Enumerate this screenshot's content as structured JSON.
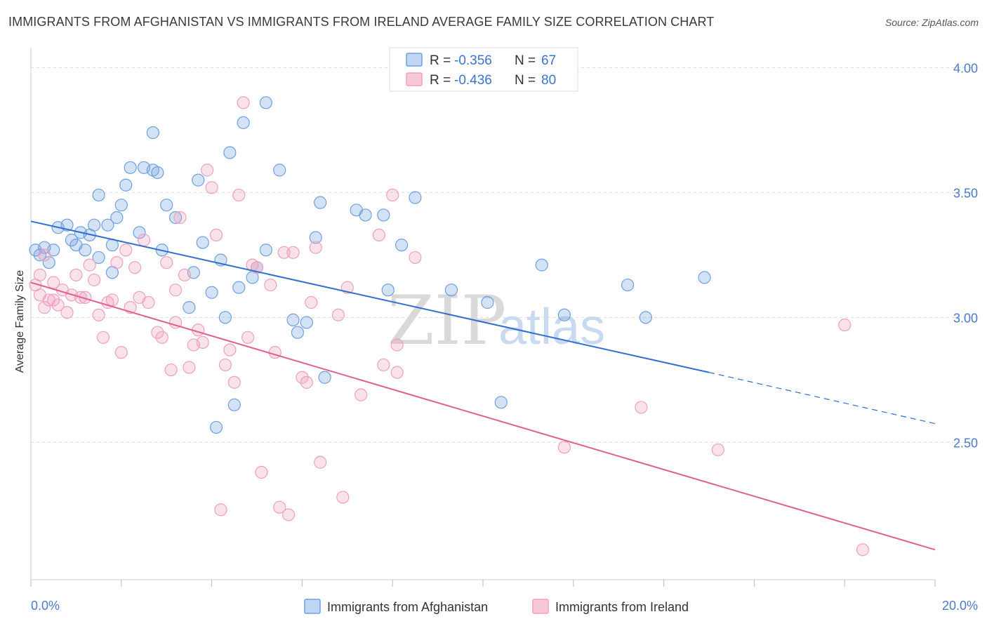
{
  "title": "IMMIGRANTS FROM AFGHANISTAN VS IMMIGRANTS FROM IRELAND AVERAGE FAMILY SIZE CORRELATION CHART",
  "source": "Source: ZipAtlas.com",
  "watermark": {
    "zip": "ZIP",
    "atlas": "atlas"
  },
  "chart_data": {
    "type": "scatter",
    "ylabel": "Average Family Size",
    "xlim": [
      0,
      20
    ],
    "ylim": [
      1.95,
      4.08
    ],
    "x_tick_labels": [
      "0.0%",
      "20.0%"
    ],
    "y_ticks": [
      2.5,
      3.0,
      3.5,
      4.0
    ],
    "y_tick_labels": [
      "2.50",
      "3.00",
      "3.50",
      "4.00"
    ],
    "legend": {
      "r_label": "R =",
      "n_label": "N =",
      "entries": [
        {
          "r": "-0.356",
          "n": "67"
        },
        {
          "r": "-0.436",
          "n": "80"
        }
      ]
    },
    "series": [
      {
        "name": "Immigrants from Afghanistan",
        "color": "#6fa0e0",
        "line_color": "#2f6fd0",
        "trend": {
          "x0": 0,
          "y0": 3.385,
          "x1": 15,
          "y1": 2.78,
          "dash_x1": 20,
          "dash_y1": 2.575
        },
        "points": [
          [
            0.1,
            3.27
          ],
          [
            0.2,
            3.25
          ],
          [
            0.3,
            3.28
          ],
          [
            0.4,
            3.22
          ],
          [
            0.5,
            3.27
          ],
          [
            0.6,
            3.36
          ],
          [
            0.8,
            3.37
          ],
          [
            0.9,
            3.31
          ],
          [
            1.0,
            3.29
          ],
          [
            1.1,
            3.34
          ],
          [
            1.2,
            3.27
          ],
          [
            1.3,
            3.33
          ],
          [
            1.4,
            3.37
          ],
          [
            1.5,
            3.49
          ],
          [
            1.5,
            3.24
          ],
          [
            1.7,
            3.37
          ],
          [
            1.8,
            3.29
          ],
          [
            1.8,
            3.18
          ],
          [
            1.9,
            3.4
          ],
          [
            2.0,
            3.45
          ],
          [
            2.1,
            3.53
          ],
          [
            2.2,
            3.6
          ],
          [
            2.4,
            3.34
          ],
          [
            2.5,
            3.6
          ],
          [
            2.7,
            3.59
          ],
          [
            2.8,
            3.58
          ],
          [
            2.7,
            3.74
          ],
          [
            2.9,
            3.27
          ],
          [
            3.0,
            3.45
          ],
          [
            3.2,
            3.4
          ],
          [
            3.5,
            3.04
          ],
          [
            3.6,
            3.18
          ],
          [
            3.7,
            3.55
          ],
          [
            3.8,
            3.3
          ],
          [
            4.0,
            3.1
          ],
          [
            4.1,
            2.56
          ],
          [
            4.2,
            3.23
          ],
          [
            4.3,
            3.0
          ],
          [
            4.4,
            3.66
          ],
          [
            4.6,
            3.12
          ],
          [
            4.5,
            2.65
          ],
          [
            4.7,
            3.78
          ],
          [
            4.9,
            3.16
          ],
          [
            5.0,
            3.2
          ],
          [
            5.2,
            3.86
          ],
          [
            5.2,
            3.27
          ],
          [
            5.5,
            3.59
          ],
          [
            5.8,
            2.99
          ],
          [
            5.9,
            2.94
          ],
          [
            6.1,
            2.98
          ],
          [
            6.3,
            3.32
          ],
          [
            6.4,
            3.46
          ],
          [
            6.5,
            2.76
          ],
          [
            7.2,
            3.43
          ],
          [
            7.4,
            3.41
          ],
          [
            7.8,
            3.41
          ],
          [
            7.9,
            3.11
          ],
          [
            8.2,
            3.29
          ],
          [
            8.5,
            3.48
          ],
          [
            9.3,
            3.11
          ],
          [
            10.1,
            3.06
          ],
          [
            11.3,
            3.21
          ],
          [
            13.2,
            3.13
          ],
          [
            14.9,
            3.16
          ],
          [
            11.8,
            3.01
          ],
          [
            10.4,
            2.66
          ],
          [
            13.6,
            3.0
          ]
        ]
      },
      {
        "name": "Immigrants from Ireland",
        "color": "#f0a0bc",
        "line_color": "#e0608f",
        "trend": {
          "x0": 0,
          "y0": 3.14,
          "x1": 20,
          "y1": 2.07
        },
        "points": [
          [
            0.1,
            3.13
          ],
          [
            0.2,
            3.17
          ],
          [
            0.2,
            3.09
          ],
          [
            0.3,
            3.25
          ],
          [
            0.3,
            3.04
          ],
          [
            0.4,
            3.07
          ],
          [
            0.5,
            3.07
          ],
          [
            0.5,
            3.14
          ],
          [
            0.6,
            3.05
          ],
          [
            0.7,
            3.11
          ],
          [
            0.8,
            3.02
          ],
          [
            0.9,
            3.09
          ],
          [
            1.0,
            3.17
          ],
          [
            1.1,
            3.08
          ],
          [
            1.2,
            3.08
          ],
          [
            1.3,
            3.21
          ],
          [
            1.4,
            3.15
          ],
          [
            1.5,
            3.01
          ],
          [
            1.6,
            2.92
          ],
          [
            1.7,
            3.06
          ],
          [
            1.8,
            3.07
          ],
          [
            1.9,
            3.22
          ],
          [
            2.0,
            2.86
          ],
          [
            2.1,
            3.27
          ],
          [
            2.3,
            3.2
          ],
          [
            2.4,
            3.08
          ],
          [
            2.5,
            3.31
          ],
          [
            2.6,
            3.06
          ],
          [
            2.8,
            2.94
          ],
          [
            2.9,
            2.92
          ],
          [
            3.0,
            3.22
          ],
          [
            3.1,
            2.79
          ],
          [
            3.2,
            2.98
          ],
          [
            3.3,
            3.4
          ],
          [
            3.4,
            3.17
          ],
          [
            3.5,
            2.8
          ],
          [
            3.6,
            2.89
          ],
          [
            3.7,
            2.95
          ],
          [
            3.8,
            2.9
          ],
          [
            3.9,
            3.59
          ],
          [
            4.0,
            3.52
          ],
          [
            4.1,
            3.33
          ],
          [
            4.2,
            2.23
          ],
          [
            4.3,
            2.81
          ],
          [
            4.4,
            2.87
          ],
          [
            4.5,
            2.74
          ],
          [
            4.6,
            3.49
          ],
          [
            4.7,
            3.86
          ],
          [
            4.8,
            2.92
          ],
          [
            4.9,
            3.21
          ],
          [
            5.0,
            3.2
          ],
          [
            5.1,
            2.38
          ],
          [
            5.3,
            3.13
          ],
          [
            5.4,
            2.86
          ],
          [
            5.5,
            2.24
          ],
          [
            5.6,
            3.26
          ],
          [
            5.7,
            2.21
          ],
          [
            5.8,
            3.26
          ],
          [
            6.0,
            2.76
          ],
          [
            6.1,
            2.74
          ],
          [
            6.2,
            3.06
          ],
          [
            6.3,
            3.28
          ],
          [
            6.4,
            2.42
          ],
          [
            6.8,
            3.01
          ],
          [
            6.9,
            2.28
          ],
          [
            7.0,
            3.12
          ],
          [
            7.3,
            2.69
          ],
          [
            7.8,
            2.81
          ],
          [
            7.7,
            3.33
          ],
          [
            8.0,
            3.49
          ],
          [
            8.1,
            2.78
          ],
          [
            8.1,
            2.89
          ],
          [
            8.5,
            3.24
          ],
          [
            11.8,
            2.48
          ],
          [
            13.5,
            2.64
          ],
          [
            15.2,
            2.47
          ],
          [
            18.0,
            2.97
          ],
          [
            18.4,
            2.07
          ],
          [
            2.2,
            3.04
          ],
          [
            3.2,
            3.11
          ]
        ]
      }
    ]
  }
}
